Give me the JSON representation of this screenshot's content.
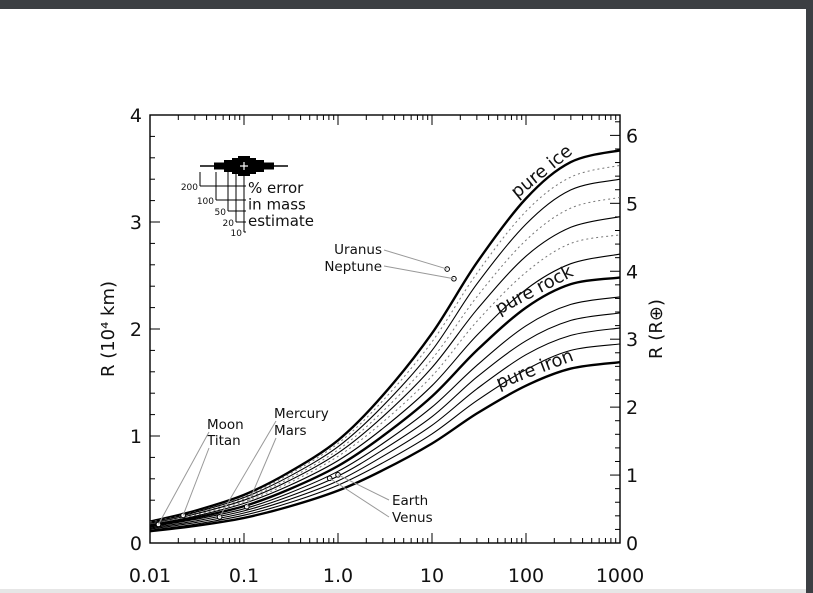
{
  "chart_data": {
    "type": "line",
    "xscale": "log",
    "xlim": [
      0.01,
      1000
    ],
    "ylim": [
      0,
      4
    ],
    "y2lim": [
      0,
      6.3
    ],
    "ylabel": "R (10⁴ km)",
    "y2label": "R (R⊕)",
    "x_ticks": [
      "0.01",
      "0.1",
      "1.0",
      "10",
      "100",
      "1000"
    ],
    "y_ticks": [
      "0",
      "1",
      "2",
      "3",
      "4"
    ],
    "y2_ticks": [
      "0",
      "1",
      "2",
      "3",
      "4",
      "5",
      "6"
    ],
    "x_sample": [
      0.01,
      0.03,
      0.1,
      0.3,
      1,
      3,
      10,
      30,
      100,
      300,
      1000
    ],
    "series": [
      {
        "name": "pure ice",
        "style": "thick",
        "label_x": 160,
        "values": [
          0.2,
          0.3,
          0.45,
          0.66,
          0.96,
          1.38,
          1.96,
          2.62,
          3.22,
          3.56,
          3.67
        ]
      },
      {
        "name": "",
        "style": "dotted",
        "values": [
          0.195,
          0.29,
          0.435,
          0.64,
          0.93,
          1.33,
          1.88,
          2.52,
          3.1,
          3.42,
          3.53
        ]
      },
      {
        "name": "",
        "style": "thin",
        "values": [
          0.19,
          0.285,
          0.425,
          0.62,
          0.9,
          1.28,
          1.8,
          2.42,
          2.98,
          3.3,
          3.4
        ]
      },
      {
        "name": "",
        "style": "dotted",
        "values": [
          0.185,
          0.275,
          0.41,
          0.6,
          0.87,
          1.23,
          1.72,
          2.3,
          2.83,
          3.13,
          3.23
        ]
      },
      {
        "name": "",
        "style": "thin",
        "values": [
          0.18,
          0.27,
          0.4,
          0.58,
          0.84,
          1.18,
          1.64,
          2.18,
          2.68,
          2.95,
          3.05
        ]
      },
      {
        "name": "",
        "style": "dotted",
        "values": [
          0.175,
          0.26,
          0.385,
          0.56,
          0.81,
          1.13,
          1.56,
          2.07,
          2.53,
          2.8,
          2.88
        ]
      },
      {
        "name": "",
        "style": "thin",
        "values": [
          0.17,
          0.25,
          0.37,
          0.535,
          0.77,
          1.07,
          1.47,
          1.94,
          2.37,
          2.61,
          2.7
        ]
      },
      {
        "name": "pure rock",
        "style": "thick",
        "label_x": 130,
        "values": [
          0.16,
          0.235,
          0.345,
          0.5,
          0.72,
          1.0,
          1.37,
          1.8,
          2.2,
          2.42,
          2.48
        ]
      },
      {
        "name": "",
        "style": "thin",
        "values": [
          0.15,
          0.22,
          0.32,
          0.465,
          0.67,
          0.93,
          1.27,
          1.66,
          2.03,
          2.23,
          2.3
        ]
      },
      {
        "name": "",
        "style": "thin",
        "values": [
          0.14,
          0.205,
          0.3,
          0.435,
          0.625,
          0.87,
          1.18,
          1.55,
          1.89,
          2.08,
          2.15
        ]
      },
      {
        "name": "",
        "style": "thin",
        "values": [
          0.13,
          0.19,
          0.28,
          0.405,
          0.58,
          0.81,
          1.1,
          1.44,
          1.76,
          1.94,
          2.01
        ]
      },
      {
        "name": "",
        "style": "thin",
        "values": [
          0.12,
          0.175,
          0.26,
          0.375,
          0.54,
          0.75,
          1.02,
          1.33,
          1.62,
          1.8,
          1.86
        ]
      },
      {
        "name": "pure iron",
        "style": "thick",
        "label_x": 130,
        "values": [
          0.11,
          0.16,
          0.235,
          0.34,
          0.49,
          0.68,
          0.93,
          1.21,
          1.47,
          1.63,
          1.69
        ]
      }
    ],
    "planets": [
      {
        "name": "Uranus",
        "mass": 14.5,
        "radius": 2.56
      },
      {
        "name": "Neptune",
        "mass": 17.1,
        "radius": 2.47
      },
      {
        "name": "Earth",
        "mass": 1.0,
        "radius": 0.637
      },
      {
        "name": "Venus",
        "mass": 0.815,
        "radius": 0.605
      },
      {
        "name": "Mercury",
        "mass": 0.055,
        "radius": 0.244
      },
      {
        "name": "Mars",
        "mass": 0.107,
        "radius": 0.339
      },
      {
        "name": "Titan",
        "mass": 0.0225,
        "radius": 0.258
      },
      {
        "name": "Moon",
        "mass": 0.0123,
        "radius": 0.174
      }
    ],
    "error_key": {
      "lines": [
        "% error",
        "in mass",
        "estimate"
      ],
      "levels": [
        "200",
        "100",
        "50",
        "20",
        "10"
      ]
    }
  }
}
